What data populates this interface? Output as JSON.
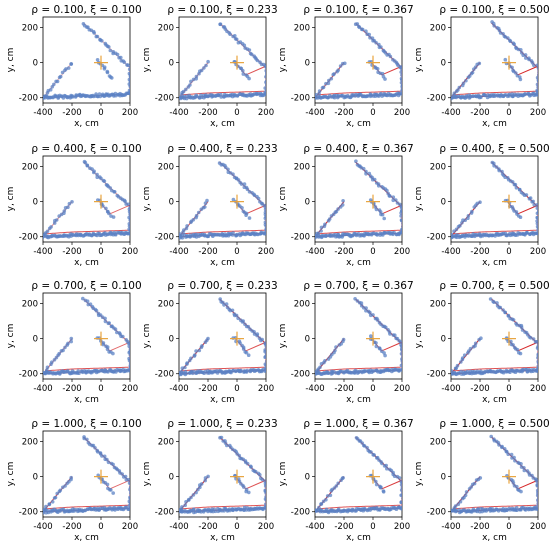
{
  "chart_data": {
    "type": "scatter",
    "panel_titles": [
      [
        "ρ = 0.100, ξ = 0.100",
        "ρ = 0.100, ξ = 0.233",
        "ρ = 0.100, ξ = 0.367",
        "ρ = 0.100, ξ = 0.500"
      ],
      [
        "ρ = 0.400, ξ = 0.100",
        "ρ = 0.400, ξ = 0.233",
        "ρ = 0.400, ξ = 0.367",
        "ρ = 0.400, ξ = 0.500"
      ],
      [
        "ρ = 0.700, ξ = 0.100",
        "ρ = 0.700, ξ = 0.233",
        "ρ = 0.700, ξ = 0.367",
        "ρ = 0.700, ξ = 0.500"
      ],
      [
        "ρ = 1.000, ξ = 0.100",
        "ρ = 1.000, ξ = 0.233",
        "ρ = 1.000, ξ = 0.367",
        "ρ = 1.000, ξ = 0.500"
      ]
    ],
    "xlabel": "x, cm",
    "ylabel": "y, cm",
    "xlim": [
      -400,
      200
    ],
    "ylim": [
      -230,
      260
    ],
    "xticks": [
      -400,
      -200,
      0,
      200
    ],
    "yticks": [
      -200,
      0,
      200
    ],
    "grid": false,
    "center_marker": {
      "x": 0,
      "y": 0,
      "symbol": "+"
    },
    "colors": {
      "points": "#5b82c4",
      "path": "#d62728",
      "center": "#e8a33c"
    },
    "shape_outline": [
      {
        "x": -120,
        "y": 225
      },
      {
        "x": 200,
        "y": -30
      },
      {
        "x": 200,
        "y": -180
      },
      {
        "x": -400,
        "y": -200
      }
    ],
    "arm": [
      {
        "x": -20,
        "y": 10
      },
      {
        "x": 80,
        "y": -90
      }
    ],
    "left_tail": [
      {
        "x": -200,
        "y": 0
      },
      {
        "x": -400,
        "y": -200
      }
    ]
  }
}
